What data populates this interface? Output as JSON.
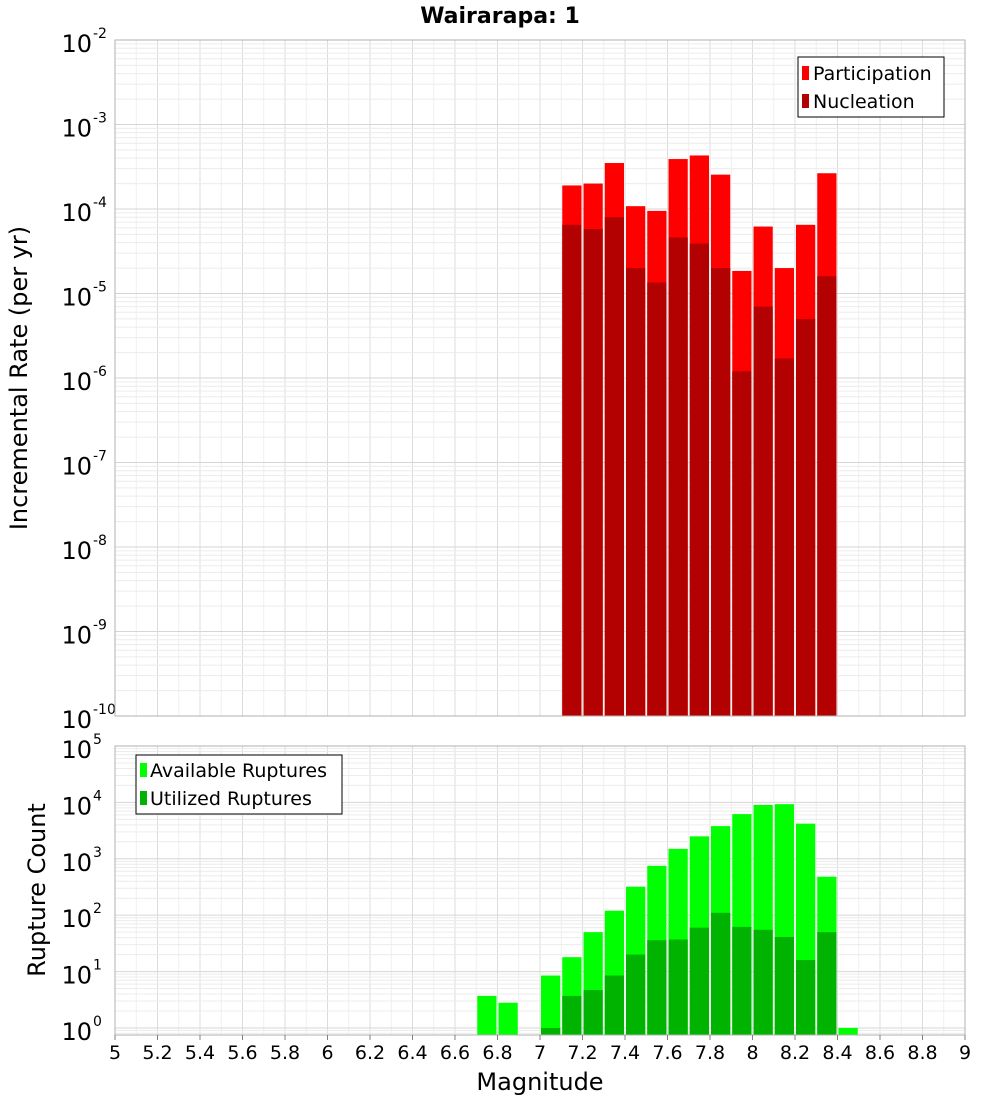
{
  "chart_data": [
    {
      "type": "bar",
      "title": "Wairarapa: 1",
      "xlabel": "Magnitude",
      "ylabel": "Incremental Rate (per yr)",
      "yscale": "log",
      "ylim": [
        1e-10,
        0.01
      ],
      "xlim": [
        5,
        9
      ],
      "bar_width": 0.1,
      "legend_position": "top-right",
      "series": [
        {
          "name": "Participation",
          "color": "#ff0000",
          "x": [
            7.15,
            7.25,
            7.35,
            7.45,
            7.55,
            7.65,
            7.75,
            7.85,
            7.95,
            8.05,
            8.15,
            8.25,
            8.35
          ],
          "values": [
            0.00019,
            0.0002,
            0.00035,
            0.000108,
            9.5e-05,
            0.00039,
            0.00043,
            0.000255,
            1.85e-05,
            6.2e-05,
            2e-05,
            6.5e-05,
            0.000265
          ]
        },
        {
          "name": "Nucleation",
          "color": "#b30000",
          "x": [
            7.15,
            7.25,
            7.35,
            7.45,
            7.55,
            7.65,
            7.75,
            7.85,
            7.95,
            8.05,
            8.15,
            8.25,
            8.35
          ],
          "values": [
            6.5e-05,
            5.8e-05,
            8e-05,
            2e-05,
            1.35e-05,
            4.6e-05,
            3.9e-05,
            2e-05,
            1.2e-06,
            7e-06,
            1.7e-06,
            5e-06,
            1.6e-05
          ]
        }
      ]
    },
    {
      "type": "bar",
      "title": "",
      "xlabel": "Magnitude",
      "ylabel": "Rupture Count",
      "yscale": "log",
      "ylim": [
        0.75,
        100000.0
      ],
      "xlim": [
        5,
        9
      ],
      "bar_width": 0.1,
      "legend_position": "top-left",
      "series": [
        {
          "name": "Available Ruptures",
          "color": "#00ff00",
          "x": [
            6.75,
            6.85,
            7.05,
            7.15,
            7.25,
            7.35,
            7.45,
            7.55,
            7.65,
            7.75,
            7.85,
            7.95,
            8.05,
            8.15,
            8.25,
            8.35,
            8.45
          ],
          "values": [
            3.7,
            2.8,
            8.5,
            18,
            50,
            120,
            320,
            750,
            1500,
            2500,
            3800,
            6200,
            9000,
            9300,
            4200,
            480,
            1
          ]
        },
        {
          "name": "Utilized Ruptures",
          "color": "#00b300",
          "x": [
            7.05,
            7.15,
            7.25,
            7.35,
            7.45,
            7.55,
            7.65,
            7.75,
            7.85,
            7.95,
            8.05,
            8.15,
            8.25,
            8.35
          ],
          "values": [
            1,
            3.7,
            4.7,
            8.5,
            20,
            36,
            37,
            60,
            110,
            62,
            55,
            41,
            16,
            50
          ]
        }
      ]
    }
  ],
  "x_ticks": [
    "5",
    "5.2",
    "5.4",
    "5.6",
    "5.8",
    "6",
    "6.2",
    "6.4",
    "6.6",
    "6.8",
    "7",
    "7.2",
    "7.4",
    "7.6",
    "7.8",
    "8",
    "8.2",
    "8.4",
    "8.6",
    "8.8",
    "9"
  ],
  "top_y_ticks": [
    {
      "base": "10",
      "exp": "-10"
    },
    {
      "base": "10",
      "exp": "-9"
    },
    {
      "base": "10",
      "exp": "-8"
    },
    {
      "base": "10",
      "exp": "-7"
    },
    {
      "base": "10",
      "exp": "-6"
    },
    {
      "base": "10",
      "exp": "-5"
    },
    {
      "base": "10",
      "exp": "-4"
    },
    {
      "base": "10",
      "exp": "-3"
    },
    {
      "base": "10",
      "exp": "-2"
    }
  ],
  "bottom_y_ticks": [
    {
      "base": "10",
      "exp": "0"
    },
    {
      "base": "10",
      "exp": "1"
    },
    {
      "base": "10",
      "exp": "2"
    },
    {
      "base": "10",
      "exp": "3"
    },
    {
      "base": "10",
      "exp": "4"
    },
    {
      "base": "10",
      "exp": "5"
    }
  ]
}
